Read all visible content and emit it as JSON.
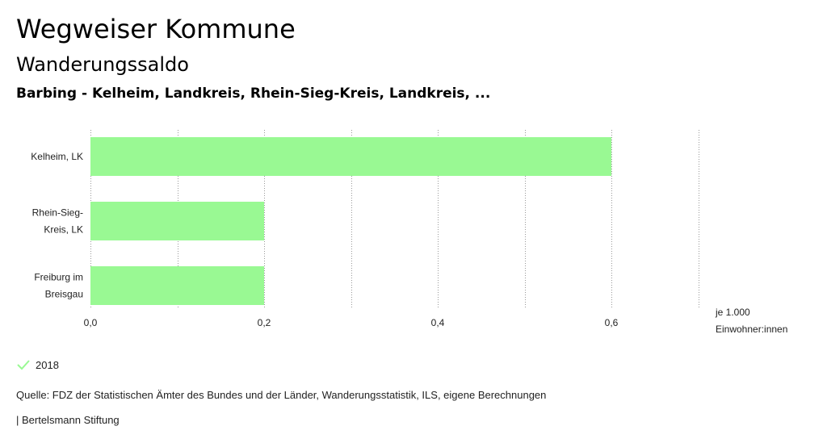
{
  "header": {
    "title": "Wegweiser Kommune",
    "subtitle": "Wanderungssaldo",
    "regions": "Barbing - Kelheim, Landkreis, Rhein-Sieg-Kreis, Landkreis, ..."
  },
  "chart_data": {
    "type": "bar",
    "orientation": "horizontal",
    "categories": [
      [
        "Kelheim, LK"
      ],
      [
        "Rhein-Sieg-",
        "Kreis, LK"
      ],
      [
        "Freiburg im",
        "Breisgau"
      ]
    ],
    "series": [
      {
        "name": "2018",
        "values": [
          0.6,
          0.2,
          0.2
        ]
      }
    ],
    "xlim": [
      0,
      0.7
    ],
    "xticks": [
      0,
      0.2,
      0.4,
      0.6
    ],
    "xtick_labels": [
      "0,0",
      "0,2",
      "0,4",
      "0,6"
    ],
    "unit_label": [
      "je 1.000",
      "Einwohner:innen"
    ],
    "grid": true,
    "bar_color": "#99f993"
  },
  "legend": {
    "label": "2018",
    "color": "#99f993"
  },
  "footer": {
    "source": "Quelle: FDZ der Statistischen Ämter des Bundes und der Länder, Wanderungsstatistik, ILS, eigene Berechnungen",
    "publisher": "| Bertelsmann Stiftung"
  }
}
